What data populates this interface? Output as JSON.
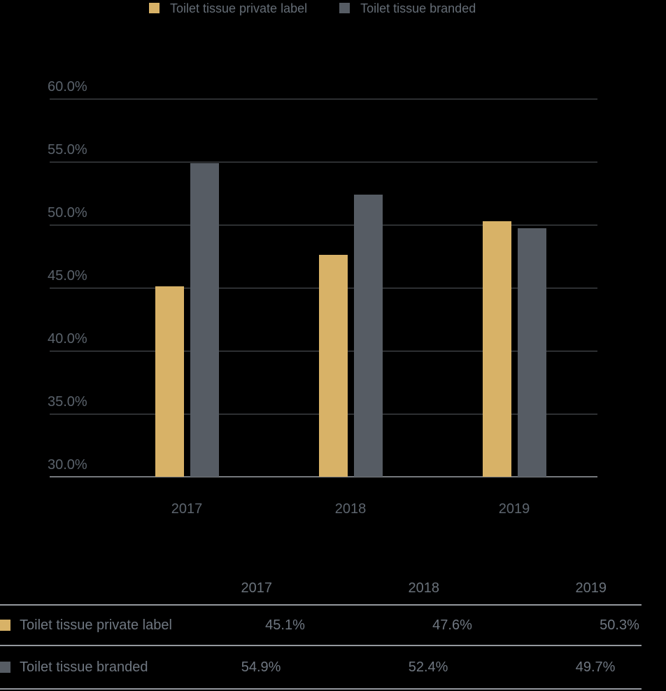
{
  "chart_data": {
    "type": "bar",
    "categories": [
      "2017",
      "2018",
      "2019"
    ],
    "series": [
      {
        "name": "Toilet tissue private label",
        "color": "#d8b267",
        "values": [
          45.1,
          47.6,
          50.3
        ]
      },
      {
        "name": "Toilet tissue branded",
        "color": "#565c64",
        "values": [
          54.9,
          52.4,
          49.7
        ]
      }
    ],
    "title": "",
    "xlabel": "",
    "ylabel": "",
    "ylim": [
      30,
      60
    ],
    "ytick_step": 5,
    "yticks": [
      "30.0%",
      "35.0%",
      "40.0%",
      "45.0%",
      "50.0%",
      "55.0%",
      "60.0%"
    ],
    "grid": true,
    "legend_position": "top"
  },
  "table": {
    "columns": [
      "2017",
      "2018",
      "2019"
    ],
    "rows": [
      {
        "label": "Toilet tissue private label",
        "values": [
          "45.1%",
          "47.6%",
          "50.3%"
        ]
      },
      {
        "label": "Toilet tissue branded",
        "values": [
          "54.9%",
          "52.4%",
          "49.7%"
        ]
      }
    ]
  },
  "colors": {
    "background": "#000000",
    "gold": "#d8b267",
    "slate": "#565c64",
    "grid_line": "#54585d",
    "axis_line": "#75787c",
    "table_line": "#94989e",
    "text_muted": "#5a626b",
    "text_table": "#6f7781"
  }
}
